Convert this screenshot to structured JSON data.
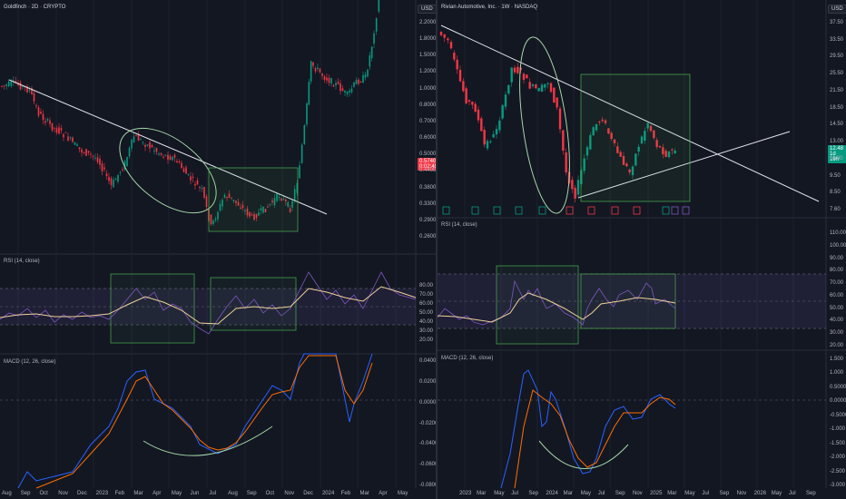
{
  "left": {
    "title": "Goldfinch · 2D · CRYPTO",
    "currency": "USD",
    "price_ticks": [
      "2.2000",
      "1.8000",
      "1.5000",
      "1.2000",
      "1.0000",
      "0.8000",
      "0.7000",
      "0.6000",
      "0.5000",
      "0.4400",
      "0.3800",
      "0.3300",
      "0.2900",
      "0.2600"
    ],
    "price_tag": {
      "value": "0.5740",
      "sub": "0:02:49",
      "color": "#f23645"
    },
    "rsi_title": "RSI (14, close)",
    "rsi_ticks": [
      "80.00",
      "70.00",
      "60.00",
      "50.00",
      "40.00",
      "30.00",
      "20.00"
    ],
    "macd_title": "MACD (12, 26, close)",
    "macd_ticks": [
      "0.04000",
      "0.02000",
      "0.00000",
      "-0.02000",
      "-0.04000",
      "-0.06000",
      "-0.08000"
    ],
    "time_ticks": [
      "Aug",
      "Sep",
      "Oct",
      "Nov",
      "Dec",
      "2023",
      "Feb",
      "Mar",
      "Apr",
      "May",
      "Jun",
      "Jul",
      "Aug",
      "Sep",
      "Oct",
      "Nov",
      "Dec",
      "2024",
      "Feb",
      "Mar",
      "Apr",
      "May"
    ]
  },
  "right": {
    "title": "Rivian Automotive, Inc. · 1W · NASDAQ",
    "currency": "USD",
    "price_ticks": [
      "37.50",
      "33.50",
      "29.50",
      "25.50",
      "21.50",
      "18.50",
      "14.50",
      "13.00",
      "11.00",
      "9.50",
      "8.50",
      "7.60"
    ],
    "price_tag": {
      "value": "12.48",
      "sub": "1d 19h",
      "color": "#089981"
    },
    "rsi_title": "RSI (14, close)",
    "rsi_ticks": [
      "110.00",
      "100.00",
      "90.00",
      "80.00",
      "70.00",
      "60.00",
      "50.00",
      "40.00",
      "30.00",
      "20.00"
    ],
    "macd_title": "MACD (12, 26, close)",
    "macd_ticks": [
      "1.500",
      "1.000",
      "0.5000",
      "0.0000",
      "-0.5000",
      "-1.000",
      "-1.500",
      "-2.000",
      "-2.500",
      "-3.000"
    ],
    "time_ticks": [
      "2023",
      "Mar",
      "May",
      "Jul",
      "Sep",
      "2024",
      "Mar",
      "May",
      "Jul",
      "Sep",
      "Nov",
      "2025",
      "Mar",
      "May",
      "Jul",
      "Sep",
      "Nov",
      "2026",
      "May",
      "Jul",
      "Sep"
    ]
  },
  "colors": {
    "bg": "#131722",
    "up": "#089981",
    "down": "#f23645",
    "rsi": "#7e57c2",
    "rsi_ma": "#f0d09a",
    "macd": "#2962ff",
    "signal": "#ff6d00",
    "drawing": "#e0e3eb",
    "green_box": "#4caf50"
  }
}
